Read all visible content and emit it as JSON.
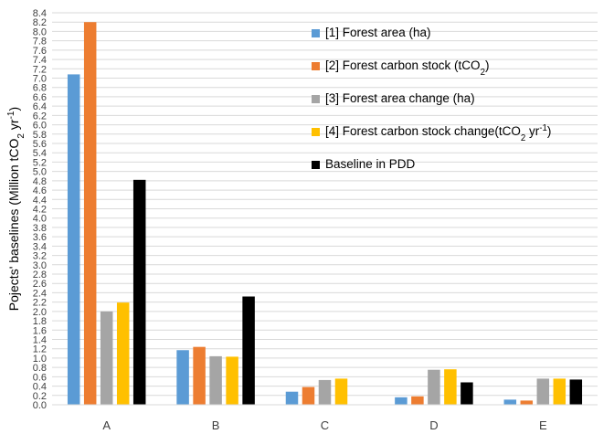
{
  "chart_data": {
    "type": "bar",
    "ylabel_parts": [
      "Pojects' baselines (Million tCO",
      "2",
      " yr",
      "-1",
      ")"
    ],
    "ylim": [
      0,
      8.4
    ],
    "ytick_step": 0.2,
    "grid": true,
    "legend_position": "top-right",
    "categories": [
      "A",
      "B",
      "C",
      "D",
      "E"
    ],
    "series": [
      {
        "name": "[1] Forest area (ha)",
        "name_parts": [
          "[1] Forest area (ha)"
        ],
        "color": "#5B9BD5",
        "values": [
          7.08,
          1.17,
          0.28,
          0.16,
          0.11
        ]
      },
      {
        "name": "[2] Forest carbon stock (tCO2)",
        "name_parts": [
          "[2] Forest carbon stock (tCO",
          "2",
          ")"
        ],
        "color": "#ED7D31",
        "values": [
          8.2,
          1.24,
          0.38,
          0.18,
          0.09
        ]
      },
      {
        "name": "[3] Forest area change (ha)",
        "name_parts": [
          "[3] Forest area change (ha)"
        ],
        "color": "#A5A5A5",
        "values": [
          2.0,
          1.04,
          0.53,
          0.75,
          0.56
        ]
      },
      {
        "name": "[4] Forest carbon stock change(tCO2 yr-1)",
        "name_parts": [
          "[4] Forest carbon stock change(tCO",
          "2",
          " yr",
          "-1",
          ")"
        ],
        "color": "#FFC000",
        "values": [
          2.19,
          1.03,
          0.56,
          0.76,
          0.56
        ]
      },
      {
        "name": "Baseline in PDD",
        "name_parts": [
          "Baseline in PDD"
        ],
        "color": "#000000",
        "values": [
          4.82,
          2.32,
          null,
          0.48,
          0.54
        ]
      }
    ]
  }
}
